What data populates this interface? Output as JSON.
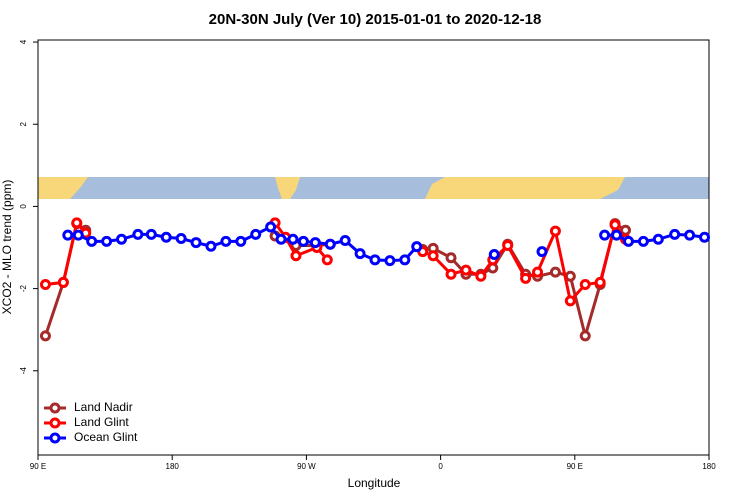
{
  "chart_data": {
    "type": "line",
    "title": "20N-30N July (Ver 10)   2015-01-01 to 2020-12-18",
    "x_label": "Longitude",
    "y_label": "XCO2 - MLO trend (ppm)",
    "xlim": [
      90,
      540
    ],
    "ylim": [
      -6.05,
      4.05
    ],
    "xticks": [
      {
        "value": 90,
        "label": "90 E"
      },
      {
        "value": 180,
        "label": "180"
      },
      {
        "value": 270,
        "label": "90 W"
      },
      {
        "value": 360,
        "label": "0"
      },
      {
        "value": 450,
        "label": "90 E"
      },
      {
        "value": 540,
        "label": "180"
      }
    ],
    "yticks": [
      -4,
      -2,
      0,
      2,
      4
    ],
    "legend": "bottom-left",
    "series": [
      {
        "name": "Land Nadir",
        "color": "#a52a2a",
        "x": [
          95,
          107,
          116,
          122,
          240,
          249,
          263,
          277,
          286,
          340,
          348,
          355,
          367,
          377,
          387,
          395,
          405,
          417,
          425,
          437,
          447,
          457,
          467,
          477,
          484
        ],
        "values": [
          -3.15,
          -1.85,
          -0.42,
          -0.58,
          null,
          -0.72,
          -0.95,
          -0.95,
          -0.92,
          null,
          -1.05,
          -1.02,
          -1.25,
          -1.65,
          -1.65,
          -1.5,
          -0.92,
          -1.65,
          -1.7,
          -1.6,
          -1.7,
          -3.15,
          -1.9,
          -0.42,
          -0.58
        ]
      },
      {
        "name": "Land Glint",
        "color": "#ff0000",
        "x": [
          95,
          107,
          116,
          122,
          240,
          249,
          256,
          263,
          277,
          284,
          340,
          348,
          355,
          367,
          377,
          387,
          395,
          405,
          417,
          425,
          437,
          447,
          457,
          467,
          477,
          484
        ],
        "values": [
          -1.9,
          -1.85,
          -0.4,
          -0.65,
          null,
          -0.4,
          -0.75,
          -1.2,
          -1.0,
          -1.3,
          null,
          -1.1,
          -1.2,
          -1.65,
          -1.55,
          -1.7,
          -1.3,
          -0.95,
          -1.75,
          -1.6,
          -0.6,
          -2.3,
          -1.9,
          -1.85,
          -0.45,
          -0.8
        ]
      },
      {
        "name": "Ocean Glint",
        "color": "#0000ff",
        "x": [
          110,
          117,
          126,
          136,
          146,
          157,
          166,
          176,
          186,
          196,
          206,
          216,
          226,
          236,
          246,
          253,
          261,
          268,
          276,
          286,
          296,
          306,
          316,
          326,
          336,
          344,
          370,
          396,
          410,
          428,
          450,
          470,
          478,
          486,
          496,
          506,
          517,
          527,
          537
        ],
        "values": [
          -0.7,
          -0.7,
          -0.85,
          -0.85,
          -0.8,
          -0.68,
          -0.68,
          -0.75,
          -0.78,
          -0.88,
          -0.97,
          -0.85,
          -0.85,
          -0.68,
          -0.5,
          -0.8,
          -0.8,
          -0.85,
          -0.88,
          -0.92,
          -0.83,
          -1.15,
          -1.3,
          -1.32,
          -1.3,
          -0.98,
          null,
          -1.17,
          null,
          -1.1,
          null,
          -0.7,
          -0.7,
          -0.85,
          -0.85,
          -0.8,
          -0.68,
          -0.7,
          -0.75
        ]
      }
    ]
  }
}
